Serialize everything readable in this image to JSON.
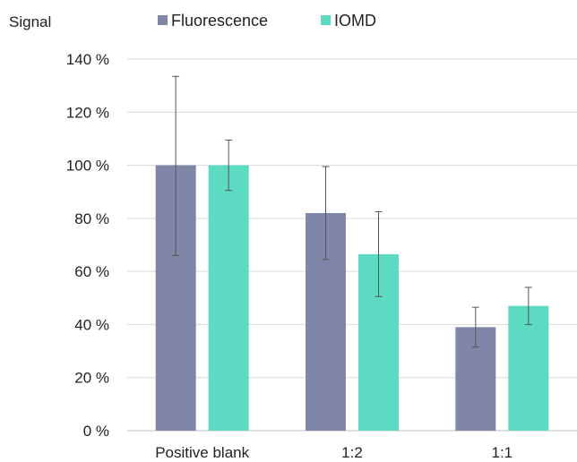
{
  "chart_data": {
    "type": "bar",
    "ylabel": "Signal",
    "categories": [
      "Positive blank",
      "1:2",
      "1:1"
    ],
    "series": [
      {
        "name": "Fluorescence",
        "color": "#7f86a8",
        "values": [
          100,
          82,
          39
        ],
        "error_low": [
          66,
          64.5,
          31.5
        ],
        "error_high": [
          133.5,
          99.5,
          46.5
        ]
      },
      {
        "name": "IOMD",
        "color": "#5ddbc2",
        "values": [
          100,
          66.5,
          47
        ],
        "error_low": [
          90.5,
          50.5,
          40
        ],
        "error_high": [
          109.5,
          82.5,
          54
        ]
      }
    ],
    "ylim": [
      0,
      140
    ],
    "yticks": [
      0,
      20,
      40,
      60,
      80,
      100,
      120,
      140
    ],
    "ytick_suffix": " %",
    "grid": true,
    "legend_position": "top"
  }
}
